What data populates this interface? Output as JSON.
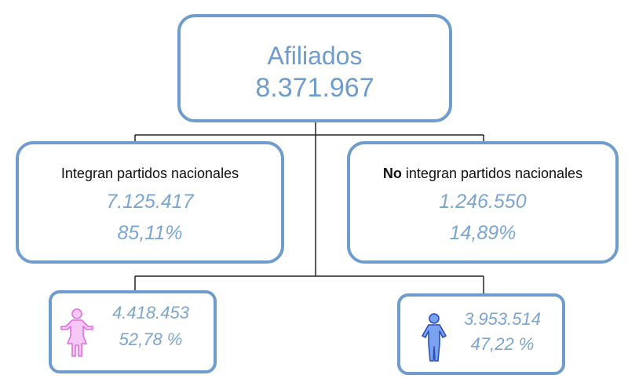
{
  "root": {
    "title": "Afiliados",
    "value": "8.371.967"
  },
  "left": {
    "label": "Integran partidos nacionales",
    "value": "7.125.417",
    "percent": "85,11%"
  },
  "right": {
    "label_bold": "No",
    "label_rest": " integran partidos nacionales",
    "value": "1.246.550",
    "percent": "14,89%"
  },
  "female": {
    "value": "4.418.453",
    "percent": "52,78 %",
    "icon": "female-figure-icon",
    "color": "#ee82ee"
  },
  "male": {
    "value": "3.953.514",
    "percent": "47,22 %",
    "icon": "male-figure-icon",
    "color": "#3b67d6"
  },
  "colors": {
    "border": "#6e9ccd",
    "text_blue": "#7ba5d2"
  }
}
